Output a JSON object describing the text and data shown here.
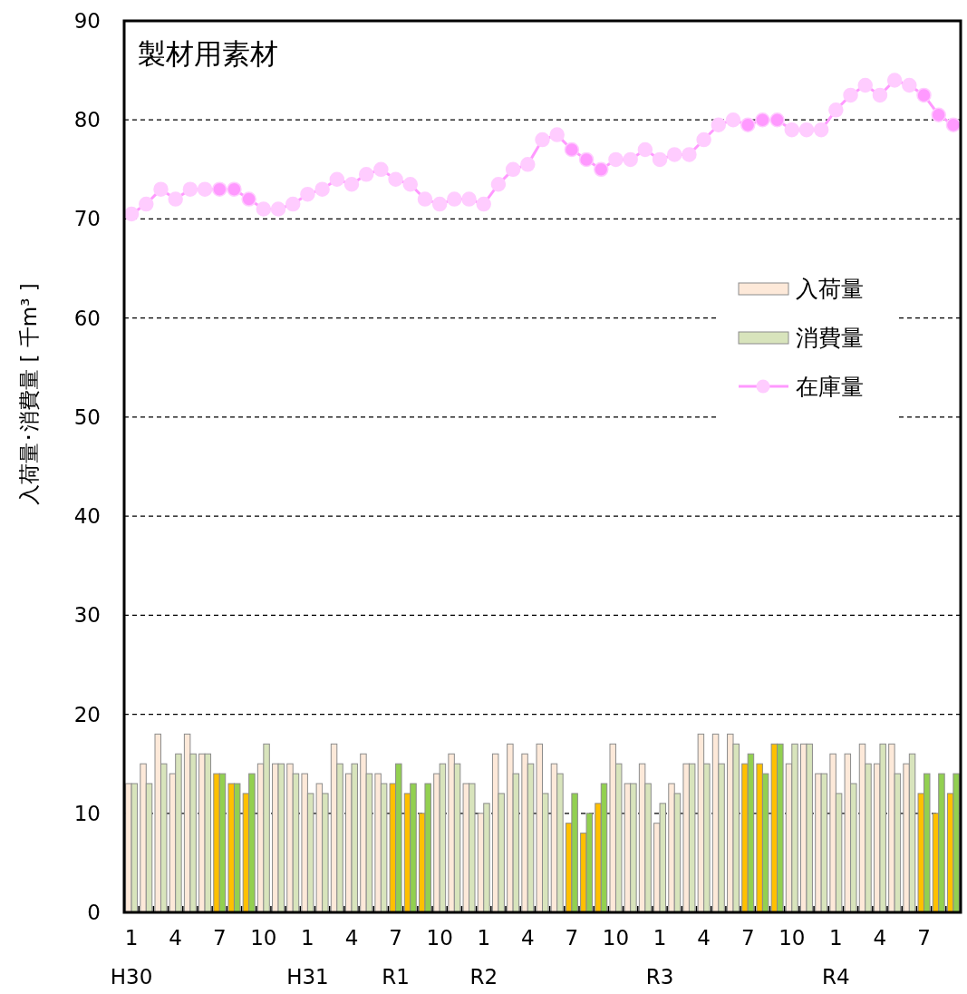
{
  "chart_data": {
    "type": "bar",
    "title": "製材用素材",
    "ylabel": "入荷量･消費量 [ 千m³ ]",
    "categories": [
      "1\nH30",
      null,
      null,
      "4",
      null,
      null,
      "7",
      null,
      null,
      "10",
      null,
      null,
      "1\nH31",
      null,
      null,
      "4",
      null,
      null,
      "7\nR1",
      null,
      null,
      "10",
      null,
      null,
      "1\nR2",
      null,
      null,
      "4",
      null,
      null,
      "7",
      null,
      null,
      "10",
      null,
      null,
      "1\nR3",
      null,
      null,
      "4",
      null,
      null,
      "7",
      null,
      null,
      "10",
      null,
      null,
      "1\nR4",
      null,
      null,
      "4",
      null,
      null,
      "7",
      null,
      null
    ],
    "series": [
      {
        "name": "入荷量",
        "color": "#fde9d9",
        "values": [
          13,
          15,
          18,
          14,
          18,
          16,
          14,
          13,
          12,
          15,
          15,
          15,
          14,
          13,
          17,
          14,
          16,
          14,
          13,
          12,
          10,
          14,
          16,
          13,
          10,
          16,
          17,
          16,
          17,
          15,
          9,
          8,
          11,
          17,
          13,
          15,
          9,
          13,
          15,
          18,
          18,
          18,
          15,
          15,
          17,
          15,
          17,
          14,
          16,
          16,
          17,
          15,
          17,
          15,
          12,
          10,
          12
        ],
        "colors": [
          "#fde9d9",
          "#fde9d9",
          "#fde9d9",
          "#fde9d9",
          "#fde9d9",
          "#fde9d9",
          "#ffc000",
          "#ffc000",
          "#ffc000",
          "#fde9d9",
          "#fde9d9",
          "#fde9d9",
          "#fde9d9",
          "#fde9d9",
          "#fde9d9",
          "#fde9d9",
          "#fde9d9",
          "#fde9d9",
          "#ffc000",
          "#ffc000",
          "#ffc000",
          "#fde9d9",
          "#fde9d9",
          "#fde9d9",
          "#fde9d9",
          "#fde9d9",
          "#fde9d9",
          "#fde9d9",
          "#fde9d9",
          "#fde9d9",
          "#ffc000",
          "#ffc000",
          "#ffc000",
          "#fde9d9",
          "#fde9d9",
          "#fde9d9",
          "#fde9d9",
          "#fde9d9",
          "#fde9d9",
          "#fde9d9",
          "#fde9d9",
          "#fde9d9",
          "#ffc000",
          "#ffc000",
          "#ffc000",
          "#fde9d9",
          "#fde9d9",
          "#fde9d9",
          "#fde9d9",
          "#fde9d9",
          "#fde9d9",
          "#fde9d9",
          "#fde9d9",
          "#fde9d9",
          "#ffc000",
          "#ffc000",
          "#ffc000"
        ]
      },
      {
        "name": "消費量",
        "color": "#d8e4bc",
        "values": [
          13,
          13,
          15,
          16,
          16,
          16,
          14,
          13,
          14,
          17,
          15,
          14,
          12,
          12,
          15,
          15,
          14,
          13,
          15,
          13,
          13,
          15,
          15,
          13,
          11,
          12,
          14,
          15,
          12,
          14,
          12,
          10,
          13,
          15,
          13,
          13,
          11,
          12,
          15,
          15,
          15,
          17,
          16,
          14,
          17,
          17,
          17,
          14,
          12,
          13,
          15,
          17,
          14,
          16,
          14,
          14,
          14
        ],
        "colors": [
          "#d8e4bc",
          "#d8e4bc",
          "#d8e4bc",
          "#d8e4bc",
          "#d8e4bc",
          "#d8e4bc",
          "#92d050",
          "#92d050",
          "#92d050",
          "#d8e4bc",
          "#d8e4bc",
          "#d8e4bc",
          "#d8e4bc",
          "#d8e4bc",
          "#d8e4bc",
          "#d8e4bc",
          "#d8e4bc",
          "#d8e4bc",
          "#92d050",
          "#92d050",
          "#92d050",
          "#d8e4bc",
          "#d8e4bc",
          "#d8e4bc",
          "#d8e4bc",
          "#d8e4bc",
          "#d8e4bc",
          "#d8e4bc",
          "#d8e4bc",
          "#d8e4bc",
          "#92d050",
          "#92d050",
          "#92d050",
          "#d8e4bc",
          "#d8e4bc",
          "#d8e4bc",
          "#d8e4bc",
          "#d8e4bc",
          "#d8e4bc",
          "#d8e4bc",
          "#d8e4bc",
          "#d8e4bc",
          "#92d050",
          "#92d050",
          "#92d050",
          "#d8e4bc",
          "#d8e4bc",
          "#d8e4bc",
          "#d8e4bc",
          "#d8e4bc",
          "#d8e4bc",
          "#d8e4bc",
          "#d8e4bc",
          "#d8e4bc",
          "#92d050",
          "#92d050",
          "#92d050"
        ]
      },
      {
        "name": "在庫量",
        "type": "line",
        "color": "#ff99ff",
        "values": [
          70.5,
          71.5,
          73,
          72,
          73,
          73,
          73,
          73,
          72,
          71,
          71,
          71.5,
          72.5,
          73,
          74,
          73.5,
          74.5,
          75,
          74,
          73.5,
          72,
          71.5,
          72,
          72,
          71.5,
          73.5,
          75,
          75.5,
          78,
          78.5,
          77,
          76,
          75,
          76,
          76,
          77,
          76,
          76.5,
          76.5,
          78,
          79.5,
          80,
          79.5,
          80,
          80,
          79,
          79,
          79,
          81,
          82.5,
          83.5,
          82.5,
          84,
          83.5,
          82.5,
          80.5,
          79.5
        ],
        "colors": [
          "#ffccff",
          "#ffccff",
          "#ffccff",
          "#ffccff",
          "#ffccff",
          "#ffccff",
          "#ff99ff",
          "#ff99ff",
          "#ff99ff",
          "#ffccff",
          "#ffccff",
          "#ffccff",
          "#ffccff",
          "#ffccff",
          "#ffccff",
          "#ffccff",
          "#ffccff",
          "#ffccff",
          "#ffccff",
          "#ffccff",
          "#ffccff",
          "#ffccff",
          "#ffccff",
          "#ffccff",
          "#ffccff",
          "#ffccff",
          "#ffccff",
          "#ffccff",
          "#ffccff",
          "#ffccff",
          "#ff99ff",
          "#ff99ff",
          "#ff99ff",
          "#ffccff",
          "#ffccff",
          "#ffccff",
          "#ffccff",
          "#ffccff",
          "#ffccff",
          "#ffccff",
          "#ffccff",
          "#ffccff",
          "#ff99ff",
          "#ff99ff",
          "#ff99ff",
          "#ffccff",
          "#ffccff",
          "#ffccff",
          "#ffccff",
          "#ffccff",
          "#ffccff",
          "#ffccff",
          "#ffccff",
          "#ffccff",
          "#ff99ff",
          "#ff99ff",
          "#ff99ff"
        ]
      }
    ],
    "ylim": [
      0,
      90
    ],
    "yticks": [
      0,
      10,
      20,
      30,
      40,
      50,
      60,
      70,
      80,
      90
    ],
    "grid": "y",
    "legend": "right",
    "marker": "circle"
  }
}
